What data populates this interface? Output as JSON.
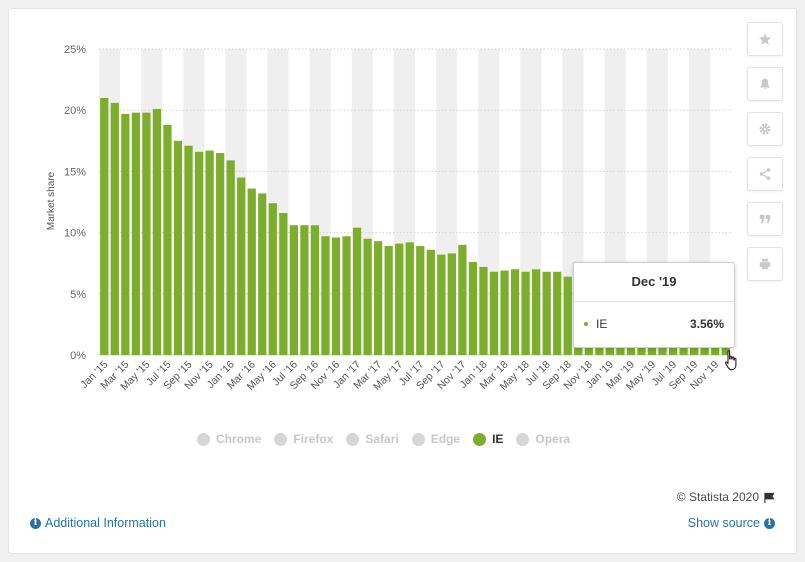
{
  "colors": {
    "ie": "#7cad2d",
    "band": "#efefef",
    "inactive": "#d6d6d6",
    "link": "#2a73a8"
  },
  "chart_data": {
    "type": "bar",
    "title": "",
    "xlabel": "",
    "ylabel": "Market share",
    "ylim": [
      0,
      25
    ],
    "y_ticks": [
      "0%",
      "5%",
      "10%",
      "15%",
      "20%",
      "25%"
    ],
    "grid": true,
    "categories": [
      "Jan '15",
      "Feb '15",
      "Mar '15",
      "Apr '15",
      "May '15",
      "Jun '15",
      "Jul '15",
      "Aug '15",
      "Sep '15",
      "Oct '15",
      "Nov '15",
      "Dec '15",
      "Jan '16",
      "Feb '16",
      "Mar '16",
      "Apr '16",
      "May '16",
      "Jun '16",
      "Jul '16",
      "Aug '16",
      "Sep '16",
      "Oct '16",
      "Nov '16",
      "Dec '16",
      "Jan '17",
      "Feb '17",
      "Mar '17",
      "Apr '17",
      "May '17",
      "Jun '17",
      "Jul '17",
      "Aug '17",
      "Sep '17",
      "Oct '17",
      "Nov '17",
      "Dec '17",
      "Jan '18",
      "Feb '18",
      "Mar '18",
      "Apr '18",
      "May '18",
      "Jun '18",
      "Jul '18",
      "Aug '18",
      "Sep '18",
      "Oct '18",
      "Nov '18",
      "Dec '18",
      "Jan '19",
      "Feb '19",
      "Mar '19",
      "Apr '19",
      "May '19",
      "Jun '19",
      "Jul '19",
      "Aug '19",
      "Sep '19",
      "Oct '19",
      "Nov '19",
      "Dec '19"
    ],
    "x_tick_labels": [
      "Jan '15",
      "Mar '15",
      "May '15",
      "Jul '15",
      "Sep '15",
      "Nov '15",
      "Jan '16",
      "Mar '16",
      "May '16",
      "Jul '16",
      "Sep '16",
      "Nov '16",
      "Jan '17",
      "Mar '17",
      "May '17",
      "Jul '17",
      "Sep '17",
      "Nov '17",
      "Jan '18",
      "Mar '18",
      "May '18",
      "Jul '18",
      "Sep '18",
      "Nov '18",
      "Jan '19",
      "Mar '19",
      "May '19",
      "Jul '19",
      "Sep '19",
      "Nov '19"
    ],
    "series": [
      {
        "name": "IE",
        "values": [
          21.0,
          20.6,
          19.7,
          19.8,
          19.8,
          20.1,
          18.8,
          17.5,
          17.1,
          16.6,
          16.7,
          16.5,
          15.9,
          14.5,
          13.6,
          13.2,
          12.4,
          11.6,
          10.6,
          10.6,
          10.6,
          9.7,
          9.6,
          9.7,
          10.4,
          9.5,
          9.3,
          8.9,
          9.1,
          9.2,
          8.9,
          8.6,
          8.2,
          8.3,
          9.0,
          7.6,
          7.2,
          6.8,
          6.9,
          7.0,
          6.8,
          7.0,
          6.8,
          6.8,
          6.4,
          6.2,
          5.9,
          5.8,
          5.5,
          5.3,
          5.0,
          4.7,
          4.6,
          4.4,
          4.2,
          4.1,
          3.9,
          3.8,
          3.7,
          3.56
        ]
      }
    ],
    "legend": [
      "Chrome",
      "Firefox",
      "Safari",
      "Edge",
      "IE",
      "Opera"
    ],
    "legend_active": "IE",
    "legend_position": "bottom"
  },
  "tooltip": {
    "title": "Dec '19",
    "series_label": "IE",
    "value": "3.56%"
  },
  "footer": {
    "copyright": "© Statista 2020",
    "additional_info": "Additional Information",
    "show_source": "Show source"
  },
  "toolbar": {
    "icons": [
      "star-icon",
      "bell-icon",
      "gear-icon",
      "share-icon",
      "quote-icon",
      "print-icon"
    ]
  }
}
